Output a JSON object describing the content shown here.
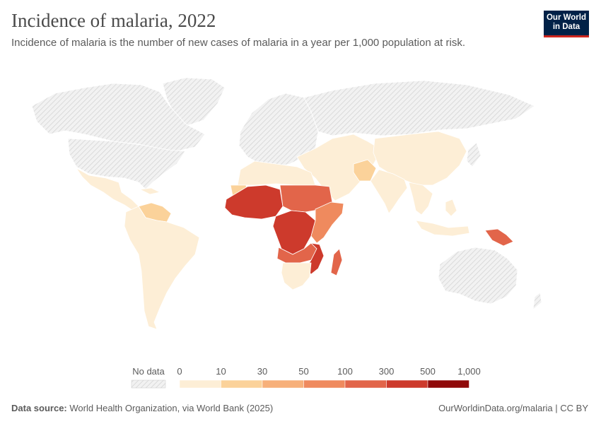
{
  "header": {
    "title": "Incidence of malaria, 2022",
    "subtitle": "Incidence of malaria is the number of new cases of malaria in a year per 1,000 population at risk."
  },
  "logo": {
    "line1": "Our World",
    "line2": "in Data"
  },
  "legend": {
    "no_data_label": "No data",
    "ticks": [
      "0",
      "10",
      "30",
      "50",
      "100",
      "300",
      "500",
      "1,000"
    ],
    "colors": [
      "#fdeed6",
      "#fbd29a",
      "#f7b07a",
      "#ef8a5e",
      "#e2654a",
      "#cd3a2c",
      "#8f0a0a"
    ]
  },
  "colors": {
    "no_data": "#e6e6e6",
    "no_data_hatch": "#cfcfcf",
    "border": "#ffffff"
  },
  "footer": {
    "source_label": "Data source:",
    "source_text": "World Health Organization, via World Bank (2025)",
    "url_text": "OurWorldinData.org/malaria | CC BY"
  },
  "map_regions": [
    {
      "name": "North America",
      "fill": "no_data"
    },
    {
      "name": "Greenland",
      "fill": "no_data"
    },
    {
      "name": "Europe",
      "fill": "no_data"
    },
    {
      "name": "Russia",
      "fill": "no_data"
    },
    {
      "name": "Australia",
      "fill": "no_data"
    },
    {
      "name": "Mexico & Central America",
      "fill": "#fdeed6"
    },
    {
      "name": "Venezuela & Guianas",
      "fill": "#fbd29a"
    },
    {
      "name": "South America",
      "fill": "#fdeed6"
    },
    {
      "name": "North Africa",
      "fill": "#fdeed6"
    },
    {
      "name": "West Africa",
      "fill": "#cd3a2c"
    },
    {
      "name": "Sahel",
      "fill": "#e2654a"
    },
    {
      "name": "Central Africa",
      "fill": "#cd3a2c"
    },
    {
      "name": "East Africa",
      "fill": "#ef8a5e"
    },
    {
      "name": "Southern Africa",
      "fill": "#fdeed6"
    },
    {
      "name": "Mozambique",
      "fill": "#cd3a2c"
    },
    {
      "name": "Madagascar",
      "fill": "#e2654a"
    },
    {
      "name": "Middle East",
      "fill": "#fdeed6"
    },
    {
      "name": "Pakistan",
      "fill": "#fbd29a"
    },
    {
      "name": "India",
      "fill": "#fdeed6"
    },
    {
      "name": "China",
      "fill": "#fdeed6"
    },
    {
      "name": "Southeast Asia",
      "fill": "#fdeed6"
    },
    {
      "name": "Papua New Guinea",
      "fill": "#e2654a"
    }
  ]
}
